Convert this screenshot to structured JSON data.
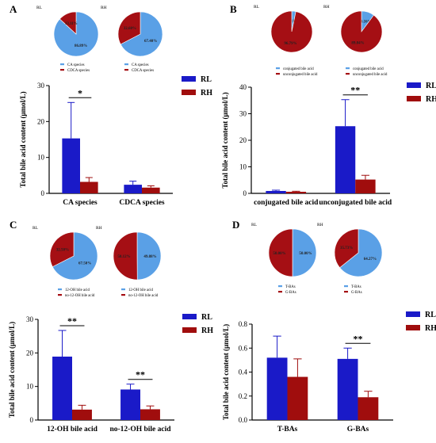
{
  "colors": {
    "blue_bar": "#1a1ac8",
    "red_bar": "#a00d0d",
    "pie_blue": "#5aa0e6",
    "pie_red": "#a50f14",
    "axis": "#000000"
  },
  "chart_data": [
    {
      "panel": "A",
      "type": "bar",
      "ylabel": "Total bile acid content (μmol/L)",
      "categories": [
        "CA species",
        "CDCA species"
      ],
      "ylim": [
        0,
        30
      ],
      "yticks": [
        0,
        10,
        20,
        30
      ],
      "series": [
        {
          "name": "RL",
          "values": [
            15.3,
            2.4
          ],
          "errors": [
            10.0,
            1.0
          ]
        },
        {
          "name": "RH",
          "values": [
            3.2,
            1.6
          ],
          "errors": [
            1.2,
            0.5
          ]
        }
      ],
      "significance": [
        {
          "category": 0,
          "text": "*"
        }
      ],
      "pies": [
        {
          "label": "RL",
          "slices": [
            {
              "name": "CA species",
              "value": 86.89,
              "text": "86.89%"
            },
            {
              "name": "CDCA species",
              "value": 13.11,
              "text": "13.11%"
            }
          ]
        },
        {
          "label": "RH",
          "slices": [
            {
              "name": "CA species",
              "value": 67.4,
              "text": "67.40%"
            },
            {
              "name": "CDCA species",
              "value": 32.6,
              "text": "32.60%"
            }
          ]
        }
      ]
    },
    {
      "panel": "B",
      "type": "bar",
      "ylabel": "Total bile acid content (μmol/L)",
      "categories": [
        "conjugated bile acid",
        "unconjugated bile acid"
      ],
      "ylim": [
        0,
        40
      ],
      "yticks": [
        0,
        10,
        20,
        30,
        40
      ],
      "series": [
        {
          "name": "RL",
          "values": [
            0.9,
            25.3
          ],
          "errors": [
            0.3,
            10.0
          ]
        },
        {
          "name": "RH",
          "values": [
            0.6,
            5.2
          ],
          "errors": [
            0.2,
            1.6
          ]
        }
      ],
      "significance": [
        {
          "category": 1,
          "text": "**"
        }
      ],
      "pies": [
        {
          "label": "RL",
          "slices": [
            {
              "name": "conjugated bile acid",
              "value": 3.21,
              "text": "3.21%"
            },
            {
              "name": "unconjugated bile acid",
              "value": 96.79,
              "text": "96.79%"
            }
          ]
        },
        {
          "label": "RH",
          "slices": [
            {
              "name": "conjugated bile acid",
              "value": 10.16,
              "text": "10.16%"
            },
            {
              "name": "unconjugated bile acid",
              "value": 89.84,
              "text": "89.84%"
            }
          ]
        }
      ]
    },
    {
      "panel": "C",
      "type": "bar",
      "ylabel": "Total bile acid content (μmol/L)",
      "categories": [
        "12-OH bile acid",
        "no-12-OH bile acid"
      ],
      "ylim": [
        0,
        30
      ],
      "yticks": [
        0,
        10,
        20,
        30
      ],
      "series": [
        {
          "name": "RL",
          "values": [
            18.9,
            9.1
          ],
          "errors": [
            7.8,
            1.6
          ]
        },
        {
          "name": "RH",
          "values": [
            3.1,
            3.2
          ],
          "errors": [
            1.3,
            1.0
          ]
        }
      ],
      "significance": [
        {
          "category": 0,
          "text": "**"
        },
        {
          "category": 1,
          "text": "**"
        }
      ],
      "pies": [
        {
          "label": "RL",
          "slices": [
            {
              "name": "12-OH bile acid",
              "value": 67.5,
              "text": "67.50%"
            },
            {
              "name": "no-12-OH bile acid",
              "value": 32.5,
              "text": "32.50%"
            }
          ]
        },
        {
          "label": "RH",
          "slices": [
            {
              "name": "12-OH bile acid",
              "value": 49.88,
              "text": "49.88%"
            },
            {
              "name": "no-12-OH bile acid",
              "value": 50.12,
              "text": "50.12%"
            }
          ]
        }
      ]
    },
    {
      "panel": "D",
      "type": "bar",
      "ylabel": "Total bile acid content (μmol/L)",
      "categories": [
        "T-BAs",
        "G-BAs"
      ],
      "ylim": [
        0,
        0.8
      ],
      "yticks": [
        0.0,
        0.2,
        0.4,
        0.6,
        0.8
      ],
      "series": [
        {
          "name": "RL",
          "values": [
            0.52,
            0.51
          ],
          "errors": [
            0.18,
            0.09
          ]
        },
        {
          "name": "RH",
          "values": [
            0.36,
            0.19
          ],
          "errors": [
            0.15,
            0.05
          ]
        }
      ],
      "significance": [
        {
          "category": 1,
          "text": "**"
        }
      ],
      "pies": [
        {
          "label": "RL",
          "slices": [
            {
              "name": "T-BAs",
              "value": 50.0,
              "text": "50.00%"
            },
            {
              "name": "G-BAs",
              "value": 50.0,
              "text": "50.00%"
            }
          ]
        },
        {
          "label": "RH",
          "slices": [
            {
              "name": "T-BAs",
              "value": 64.27,
              "text": "64.27%"
            },
            {
              "name": "G-BAs",
              "value": 35.73,
              "text": "35.73%"
            }
          ]
        }
      ]
    }
  ]
}
